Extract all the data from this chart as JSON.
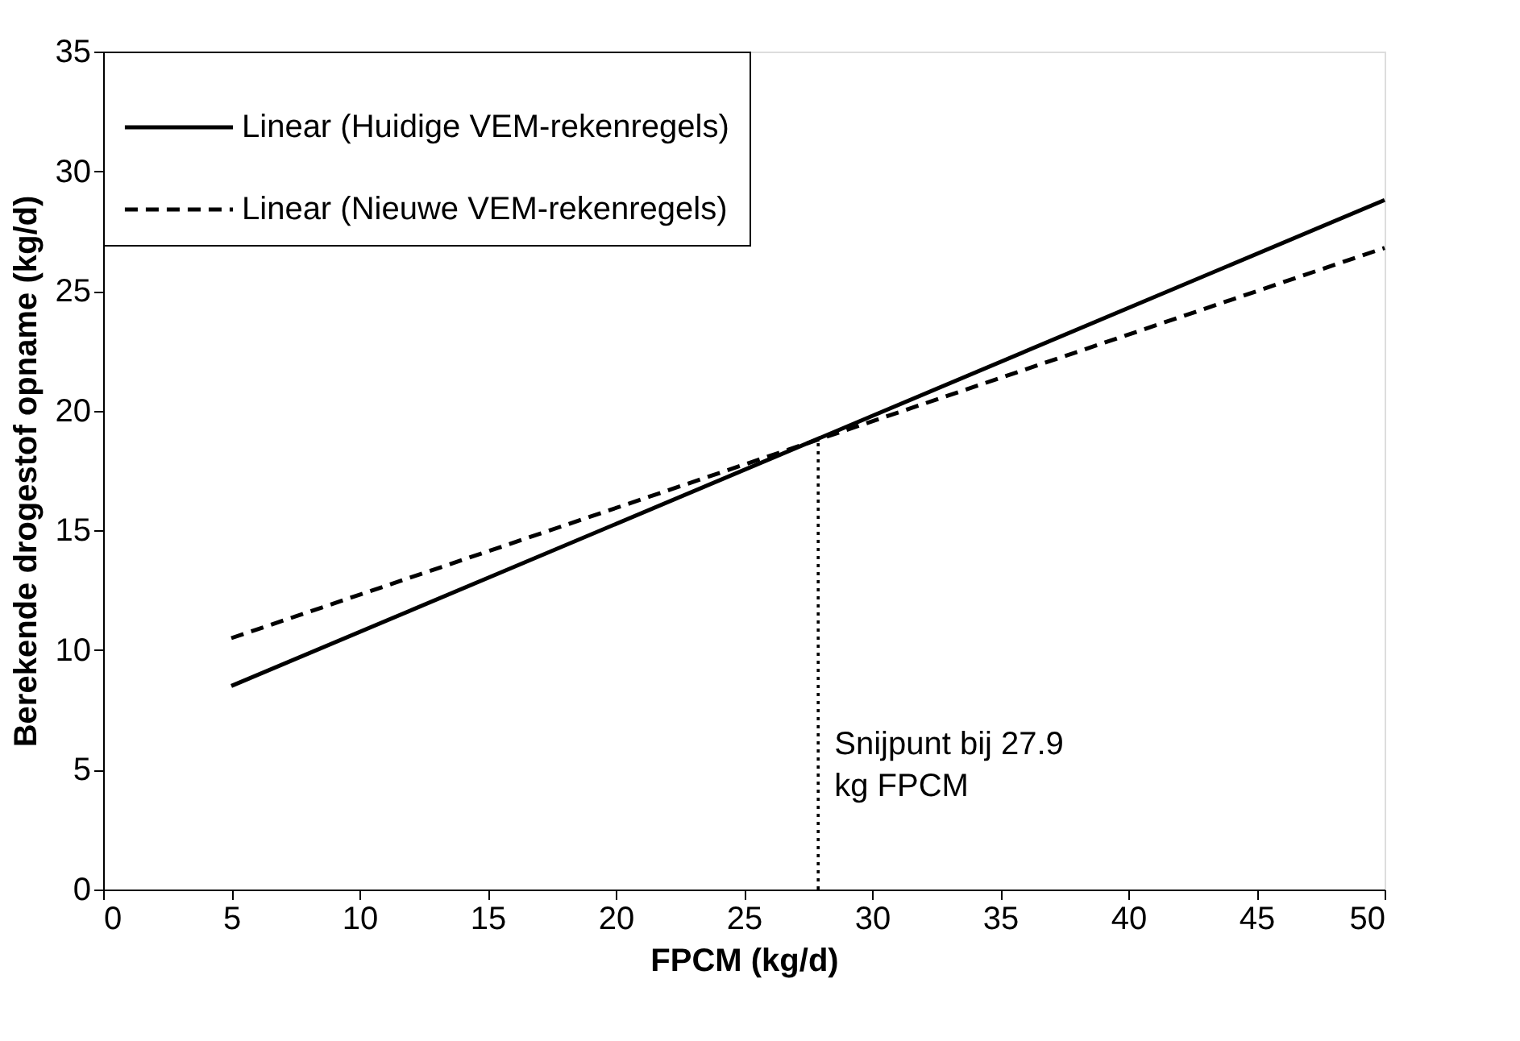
{
  "chart_data": {
    "type": "line",
    "xlabel": "FPCM (kg/d)",
    "ylabel": "Berekende drogestof opname (kg/d)",
    "x": [
      5,
      50
    ],
    "series": [
      {
        "name": "Linear (Huidige VEM-rekenregels)",
        "color": "#000000",
        "line_style": "solid",
        "values": [
          8.5,
          28.8
        ]
      },
      {
        "name": "Linear (Nieuwe VEM-rekenregels)",
        "color": "#000000",
        "line_style": "dashed",
        "values": [
          10.5,
          26.8
        ]
      },
      {
        "color": "#000000",
        "line_style": "dotted",
        "x": [
          27.9,
          27.9
        ],
        "values": [
          0,
          18.8
        ]
      }
    ],
    "annotations": [
      "Snijpunt bij 27.9\nkg FPCM"
    ],
    "xlim": [
      0,
      50
    ],
    "xticks": [
      0,
      5,
      10,
      15,
      20,
      25,
      30,
      35,
      40,
      45,
      50
    ],
    "ylim": [
      0,
      35
    ],
    "yticks": [
      0,
      5,
      10,
      15,
      20,
      25,
      30,
      35
    ],
    "grid": false,
    "legend": "top left",
    "marker": "none"
  }
}
